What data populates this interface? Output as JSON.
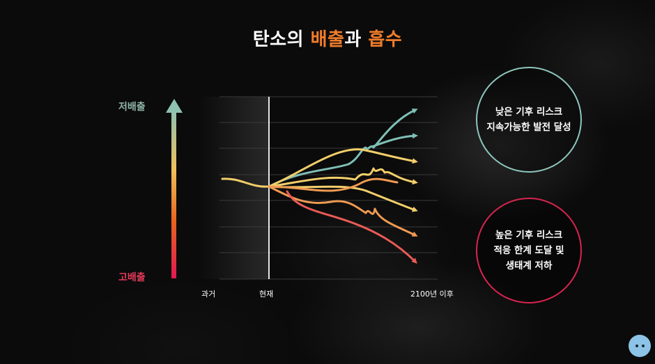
{
  "title": {
    "part1": "탄소의 ",
    "part2": "배출",
    "part3": "과 ",
    "part4": "흡수"
  },
  "y_axis": {
    "top_label": "저배출",
    "bottom_label": "고배출"
  },
  "x_axis": {
    "left_label": "과거",
    "mid_label": "현재",
    "right_label": "2100년 이후"
  },
  "outcomes": {
    "low_risk": "낮은 기후 리스크\n지속가능한 발전 달성",
    "high_risk": "높은 기후 리스크\n적응 한계 도달 및\n생태계 저하"
  },
  "colors": {
    "title_accent": "#f07d2a",
    "low_emission": "#8fb6aa",
    "high_emission": "#e83a5a",
    "path_teal": "#7fbfb6",
    "path_yellow": "#f3cf6a",
    "path_orange": "#ef9a52",
    "path_red": "#ea5b57"
  },
  "icons": {
    "arrow": "gradient-up-arrow-icon",
    "mascot": "mascot-icon"
  }
}
